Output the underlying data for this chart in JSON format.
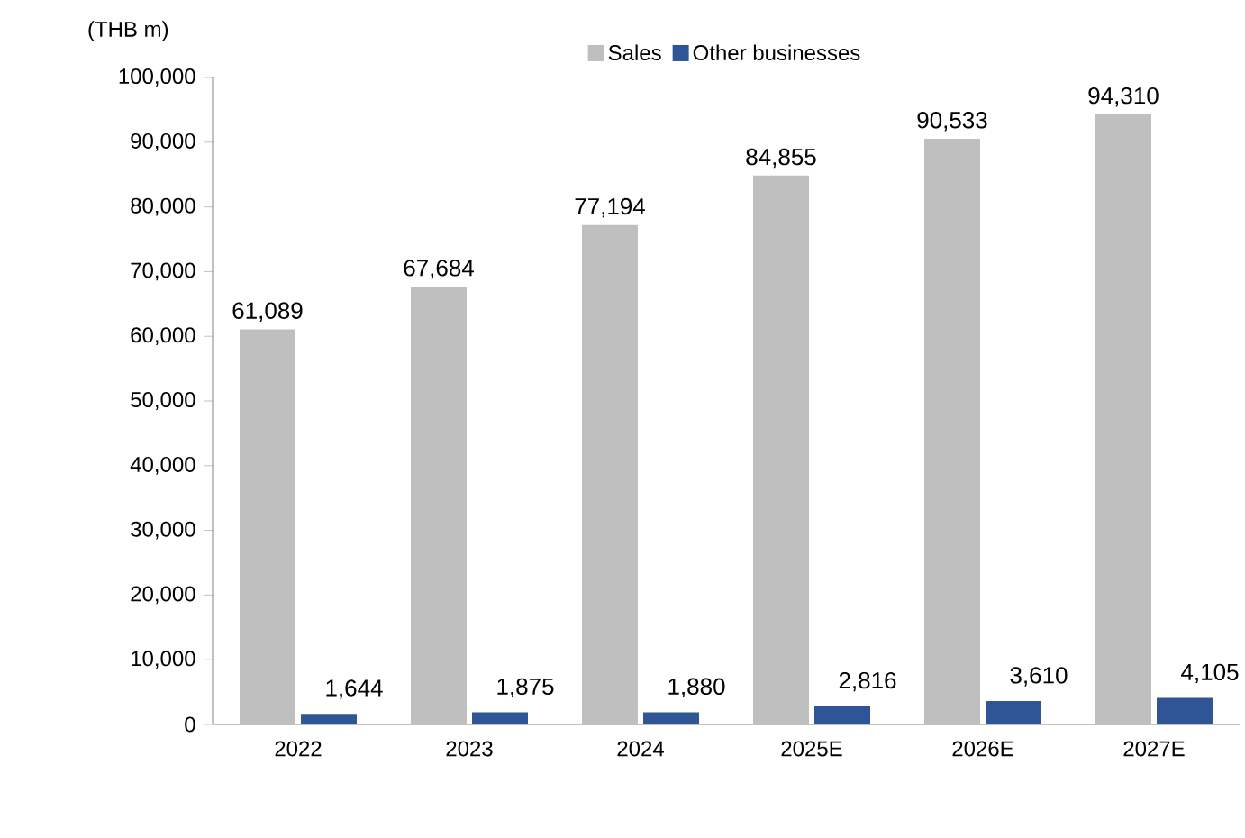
{
  "chart_data": {
    "type": "bar",
    "ylabel": "(THB m)",
    "categories": [
      "2022",
      "2023",
      "2024",
      "2025E",
      "2026E",
      "2027E"
    ],
    "series": [
      {
        "name": "Sales",
        "color": "#bfbfbf",
        "values": [
          61089,
          67684,
          77194,
          84855,
          90533,
          94310
        ],
        "value_labels": [
          "61,089",
          "67,684",
          "77,194",
          "84,855",
          "90,533",
          "94,310"
        ]
      },
      {
        "name": "Other businesses",
        "color": "#2f5597",
        "values": [
          1644,
          1875,
          1880,
          2816,
          3610,
          4105
        ],
        "value_labels": [
          "1,644",
          "1,875",
          "1,880",
          "2,816",
          "3,610",
          "4,105"
        ]
      }
    ],
    "ylim": [
      0,
      100000
    ],
    "yticks": [
      0,
      {
        "value": 10000,
        "label": "10,000"
      },
      {
        "value": 20000,
        "label": "20,000"
      },
      {
        "value": 30000,
        "label": "30,000"
      },
      {
        "value": 40000,
        "label": "40,000"
      },
      {
        "value": 50000,
        "label": "50,000"
      },
      {
        "value": 60000,
        "label": "60,000"
      },
      {
        "value": 70000,
        "label": "70,000"
      },
      {
        "value": 80000,
        "label": "80,000"
      },
      {
        "value": 90000,
        "label": "90,000"
      },
      {
        "value": 100000,
        "label": "100,000"
      }
    ],
    "legend": "top",
    "grid": false
  }
}
